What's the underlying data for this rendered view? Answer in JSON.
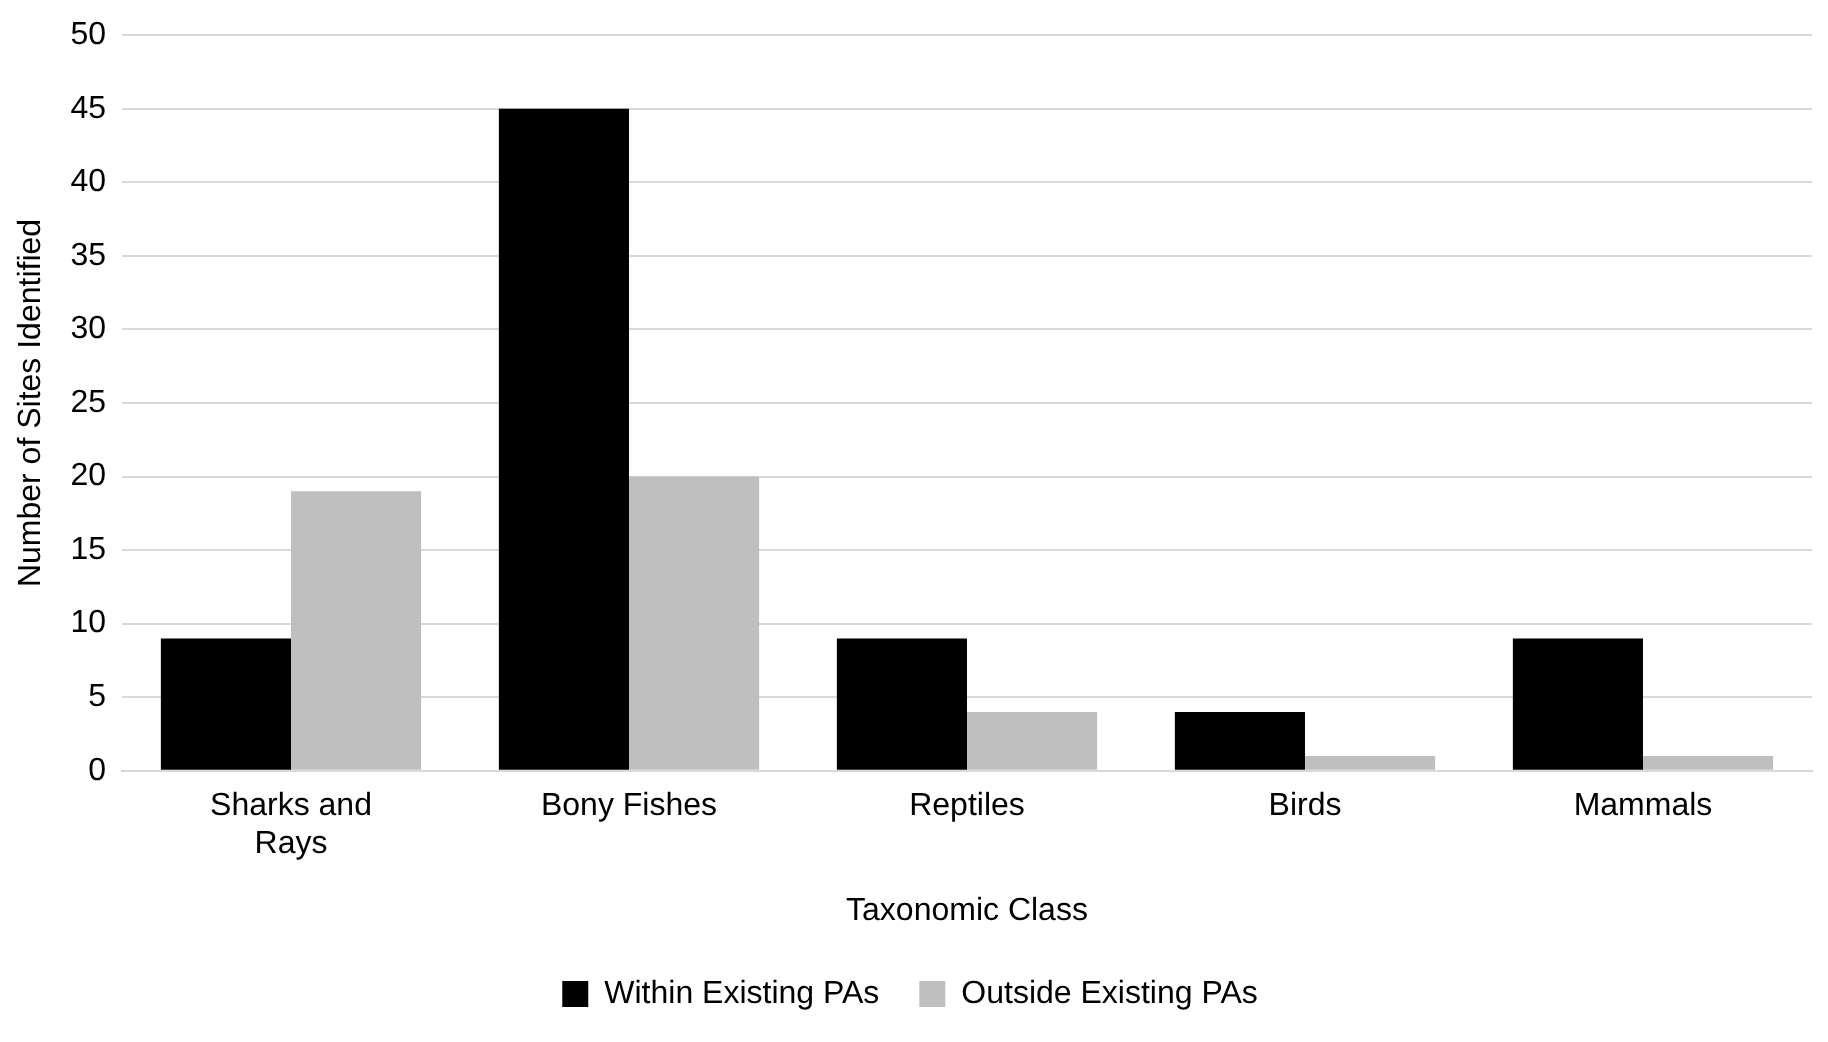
{
  "chart_data": {
    "type": "bar",
    "xlabel": "Taxonomic Class",
    "ylabel": "Number of Sites Identified",
    "categories": [
      "Sharks and Rays",
      "Bony Fishes",
      "Reptiles",
      "Birds",
      "Mammals"
    ],
    "series": [
      {
        "name": "Within Existing PAs",
        "color": "#000000",
        "values": [
          9,
          45,
          9,
          4,
          9
        ]
      },
      {
        "name": "Outside Existing PAs",
        "color": "#bfbfbf",
        "values": [
          19,
          20,
          4,
          1,
          1
        ]
      }
    ],
    "ylim": [
      0,
      50
    ],
    "yticks": [
      0,
      5,
      10,
      15,
      20,
      25,
      30,
      35,
      40,
      45,
      50
    ],
    "grid": "y",
    "legend": "bottom"
  }
}
